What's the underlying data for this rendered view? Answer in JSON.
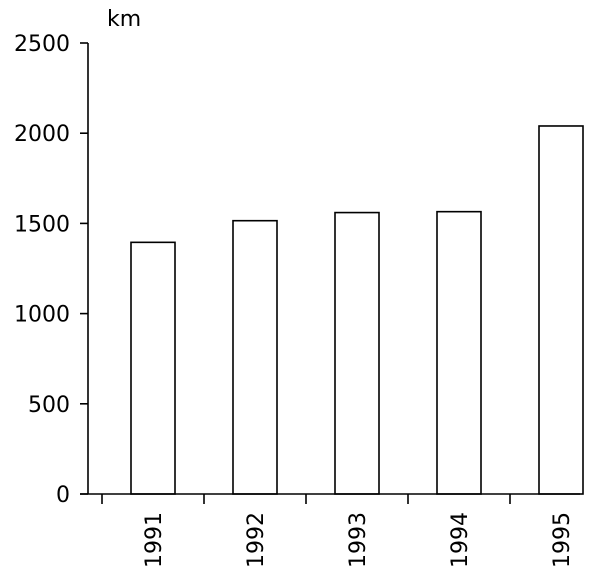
{
  "chart_data": {
    "type": "bar",
    "ylabel": "km",
    "categories": [
      "1991",
      "1992",
      "1993",
      "1994",
      "1995"
    ],
    "values": [
      1395,
      1515,
      1560,
      1565,
      2040
    ],
    "ylim": [
      0,
      2500
    ],
    "yticks": [
      0,
      500,
      1000,
      1500,
      2000,
      2500
    ],
    "grid": false
  }
}
